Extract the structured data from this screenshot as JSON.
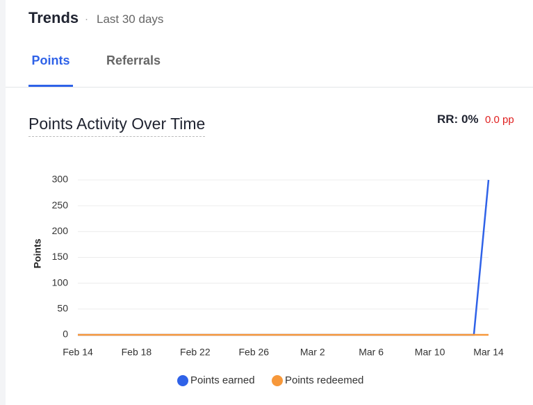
{
  "header": {
    "title": "Trends",
    "separator": "·",
    "subtitle": "Last 30 days"
  },
  "tabs": [
    {
      "label": "Points",
      "active": true
    },
    {
      "label": "Referrals",
      "active": false
    }
  ],
  "rr": {
    "label": "RR: 0%",
    "change": "0.0 pp"
  },
  "chart_data": {
    "type": "line",
    "title": "Points Activity Over Time",
    "y_label": "Points",
    "categories": [
      "Feb 14",
      null,
      null,
      null,
      "Feb 18",
      null,
      null,
      null,
      "Feb 22",
      null,
      null,
      null,
      "Feb 26",
      null,
      null,
      null,
      "Mar 2",
      null,
      null,
      null,
      "Mar 6",
      null,
      null,
      null,
      "Mar 10",
      null,
      null,
      null,
      "Mar 14"
    ],
    "series": [
      {
        "name": "Points earned",
        "color": "#2f62e8",
        "values": [
          0,
          0,
          0,
          0,
          0,
          0,
          0,
          0,
          0,
          0,
          0,
          0,
          0,
          0,
          0,
          0,
          0,
          0,
          0,
          0,
          0,
          0,
          0,
          0,
          0,
          0,
          0,
          0,
          300
        ]
      },
      {
        "name": "Points redeemed",
        "color": "#f7983a",
        "values": [
          0,
          0,
          0,
          0,
          0,
          0,
          0,
          0,
          0,
          0,
          0,
          0,
          0,
          0,
          0,
          0,
          0,
          0,
          0,
          0,
          0,
          0,
          0,
          0,
          0,
          0,
          0,
          0,
          0
        ]
      }
    ],
    "ylim": [
      0,
      300
    ],
    "yticks": [
      0,
      50,
      100,
      150,
      200,
      250,
      300
    ],
    "grid": true
  }
}
